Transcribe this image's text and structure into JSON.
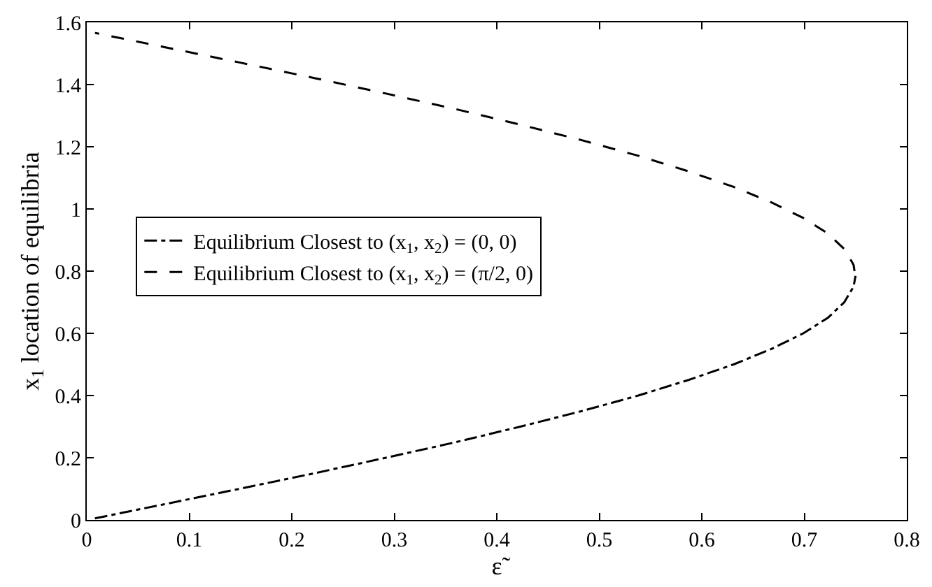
{
  "chart_data": {
    "type": "line",
    "xlabel": "ε̃",
    "ylabel": "x$_{1}$ location of equilibria",
    "xlim": [
      0,
      0.8
    ],
    "xticks": [
      0,
      0.1,
      0.2,
      0.3,
      0.4,
      0.5,
      0.6,
      0.7,
      0.8
    ],
    "ylim": [
      0,
      1.6
    ],
    "yticks": [
      0,
      0.2,
      0.4,
      0.6,
      0.8,
      1,
      1.2,
      1.4,
      1.6
    ],
    "grid": false,
    "legend": "left",
    "marker": "none",
    "series": [
      {
        "name": "Equilibrium Closest to (x$_{1}$, x$_{2}$) = (0, 0)",
        "color": "#000000",
        "line_style": "dashdot",
        "x": [
          0.008,
          0.075,
          0.149,
          0.222,
          0.292,
          0.36,
          0.423,
          0.483,
          0.538,
          0.587,
          0.631,
          0.668,
          0.699,
          0.723,
          0.739,
          0.748,
          0.75
        ],
        "values": [
          0.005,
          0.05,
          0.1,
          0.15,
          0.2,
          0.25,
          0.3,
          0.35,
          0.4,
          0.45,
          0.5,
          0.55,
          0.6,
          0.65,
          0.7,
          0.75,
          0.785
        ]
      },
      {
        "name": "Equilibrium Closest to (x$_{1}$, x$_{2}$) = (π/2, 0)",
        "color": "#000000",
        "line_style": "dashed",
        "x": [
          0.749,
          0.748,
          0.739,
          0.723,
          0.699,
          0.668,
          0.631,
          0.587,
          0.538,
          0.483,
          0.423,
          0.36,
          0.292,
          0.222,
          0.149,
          0.075,
          0.008
        ],
        "values": [
          0.8,
          0.821,
          0.871,
          0.921,
          0.971,
          1.021,
          1.071,
          1.121,
          1.171,
          1.221,
          1.271,
          1.321,
          1.371,
          1.421,
          1.471,
          1.521,
          1.566
        ]
      }
    ]
  }
}
